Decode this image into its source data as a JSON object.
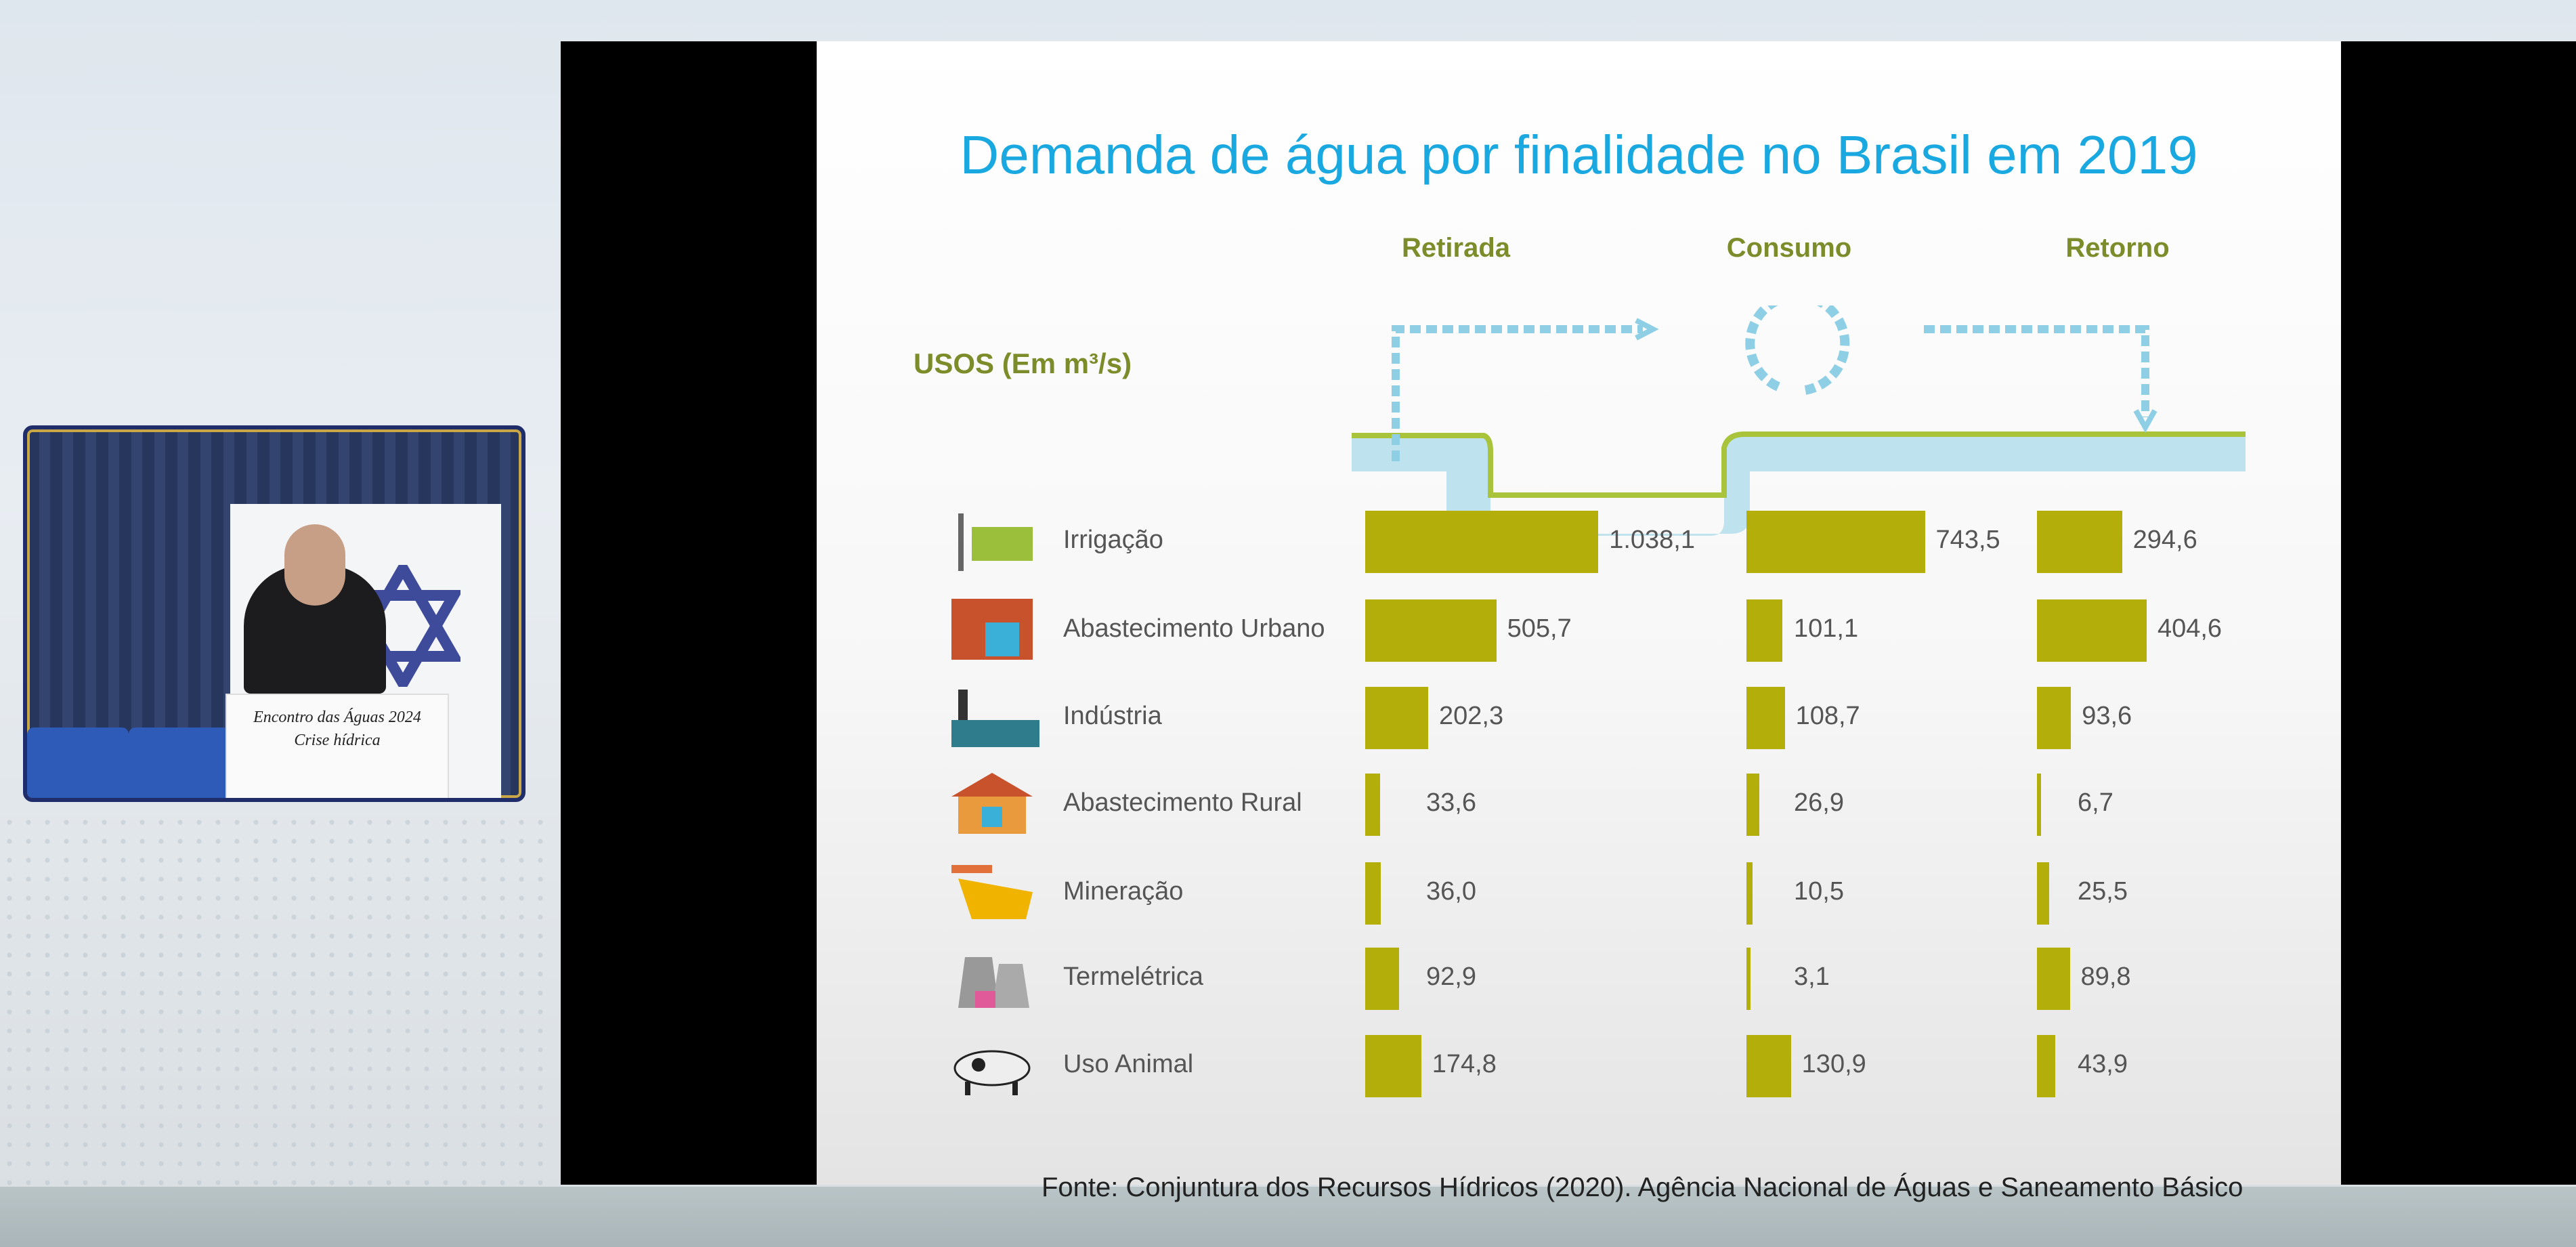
{
  "slide": {
    "title": "Demanda de água por finalidade no Brasil em 2019",
    "units_label": "USOS (Em m³/s)",
    "columns": [
      "Retirada",
      "Consumo",
      "Retorno"
    ],
    "rows": [
      {
        "label": "Irrigação",
        "icon": "irrigation-icon",
        "values": [
          1038.1,
          743.5,
          294.6
        ],
        "display": [
          "1.038,1",
          "743,5",
          "294,6"
        ]
      },
      {
        "label": "Abastecimento Urbano",
        "icon": "urban-building-icon",
        "values": [
          505.7,
          101.1,
          404.6
        ],
        "display": [
          "505,7",
          "101,1",
          "404,6"
        ]
      },
      {
        "label": "Indústria",
        "icon": "factory-icon",
        "values": [
          202.3,
          108.7,
          93.6
        ],
        "display": [
          "202,3",
          "108,7",
          "93,6"
        ]
      },
      {
        "label": "Abastecimento Rural",
        "icon": "rural-house-icon",
        "values": [
          33.6,
          26.9,
          6.7
        ],
        "display": [
          "33,6",
          "26,9",
          "6,7"
        ]
      },
      {
        "label": "Mineração",
        "icon": "mining-truck-icon",
        "values": [
          36.0,
          10.5,
          25.5
        ],
        "display": [
          "36,0",
          "10,5",
          "25,5"
        ]
      },
      {
        "label": "Termelétrica",
        "icon": "power-plant-icon",
        "values": [
          92.9,
          3.1,
          89.8
        ],
        "display": [
          "92,9",
          "3,1",
          "89,8"
        ]
      },
      {
        "label": "Uso Animal",
        "icon": "cow-icon",
        "values": [
          174.8,
          130.9,
          43.9
        ],
        "display": [
          "174,8",
          "130,9",
          "43,9"
        ]
      }
    ],
    "source": "Fonte: Conjuntura dos Recursos Hídricos (2020). Agência Nacional de Águas e Saneamento Básico"
  },
  "webcam": {
    "podium_text": [
      "Encontro das Águas 2024",
      "Crise hídrica"
    ]
  },
  "colors": {
    "title": "#1aa8e0",
    "accent": "#7d8c2a",
    "bar": "#b4ae0b",
    "water": "#bfe3ee"
  }
}
